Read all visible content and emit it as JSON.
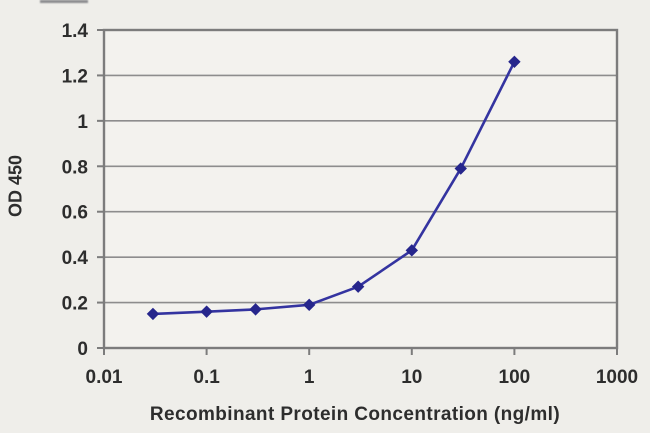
{
  "chart_data": {
    "type": "line",
    "title": "",
    "xlabel": "Recombinant Protein Concentration (ng/ml)",
    "ylabel": "OD 450",
    "x_scale": "log",
    "x": [
      0.03,
      0.1,
      0.3,
      1,
      3,
      10,
      30,
      100
    ],
    "y": [
      0.15,
      0.16,
      0.17,
      0.19,
      0.27,
      0.43,
      0.79,
      1.26
    ],
    "xlim": [
      0.01,
      1000
    ],
    "ylim": [
      0,
      1.4
    ],
    "x_ticks": [
      0.01,
      0.1,
      1,
      10,
      100,
      1000
    ],
    "x_tick_labels": [
      "0.01",
      "0.1",
      "1",
      "10",
      "100",
      "1000"
    ],
    "y_ticks": [
      0,
      0.2,
      0.4,
      0.6,
      0.8,
      1,
      1.2,
      1.4
    ],
    "y_tick_labels": [
      "0",
      "0.2",
      "0.4",
      "0.6",
      "0.8",
      "1",
      "1.2",
      "1.4"
    ],
    "grid": true,
    "legend": false,
    "marker": "diamond"
  },
  "colors": {
    "background": "#efeeea",
    "plot_background": "#f3f2ee",
    "grid": "#8d8d8d",
    "axis": "#7c7c7c",
    "text": "#2d2d2d",
    "line": "#3434a0",
    "marker": "#26268c"
  }
}
